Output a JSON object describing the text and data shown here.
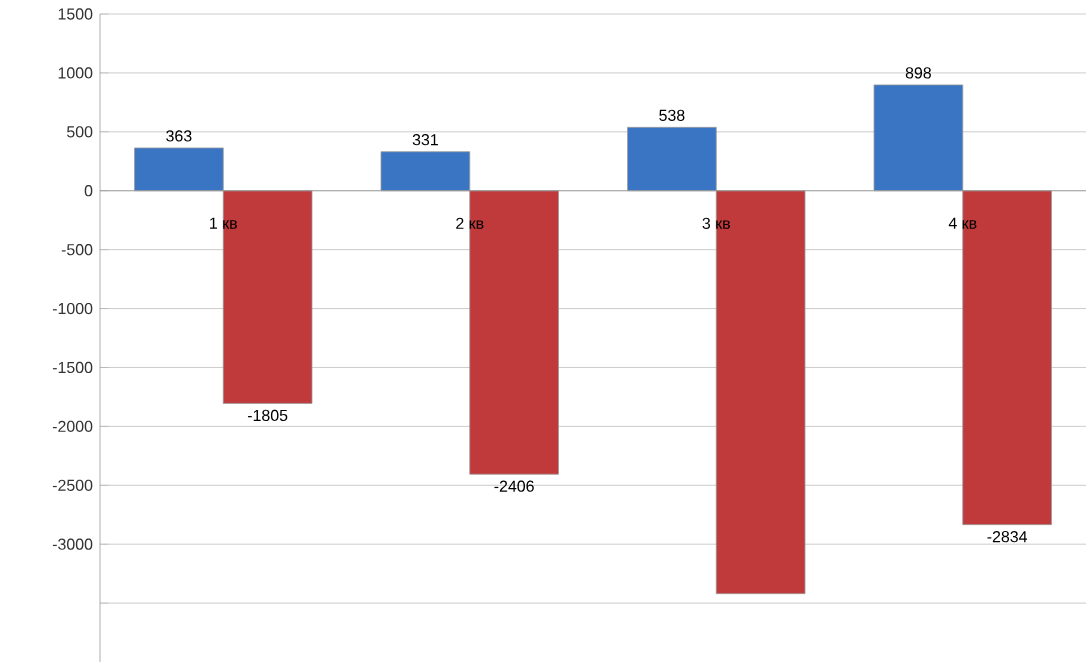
{
  "chart_data": {
    "type": "bar",
    "categories": [
      "1 кв",
      "2 кв",
      "3 кв",
      "4 кв"
    ],
    "series": [
      {
        "color": "#3a75c4",
        "values": [
          363,
          331,
          538,
          898
        ],
        "value_labels": [
          "363",
          "331",
          "538",
          "898"
        ]
      },
      {
        "color": "#c0393b",
        "values": [
          -1805,
          -2406,
          -3420,
          -2834
        ],
        "value_labels": [
          "-1805",
          "-2406",
          null,
          "-2834"
        ]
      }
    ],
    "ylim": [
      -4000,
      1500
    ],
    "yticks": [
      1500,
      1000,
      500,
      0,
      -500,
      -1000,
      -1500,
      -2000,
      -2500,
      -3000,
      {
        "value": -3500,
        "label": null
      }
    ],
    "grid": "y"
  }
}
